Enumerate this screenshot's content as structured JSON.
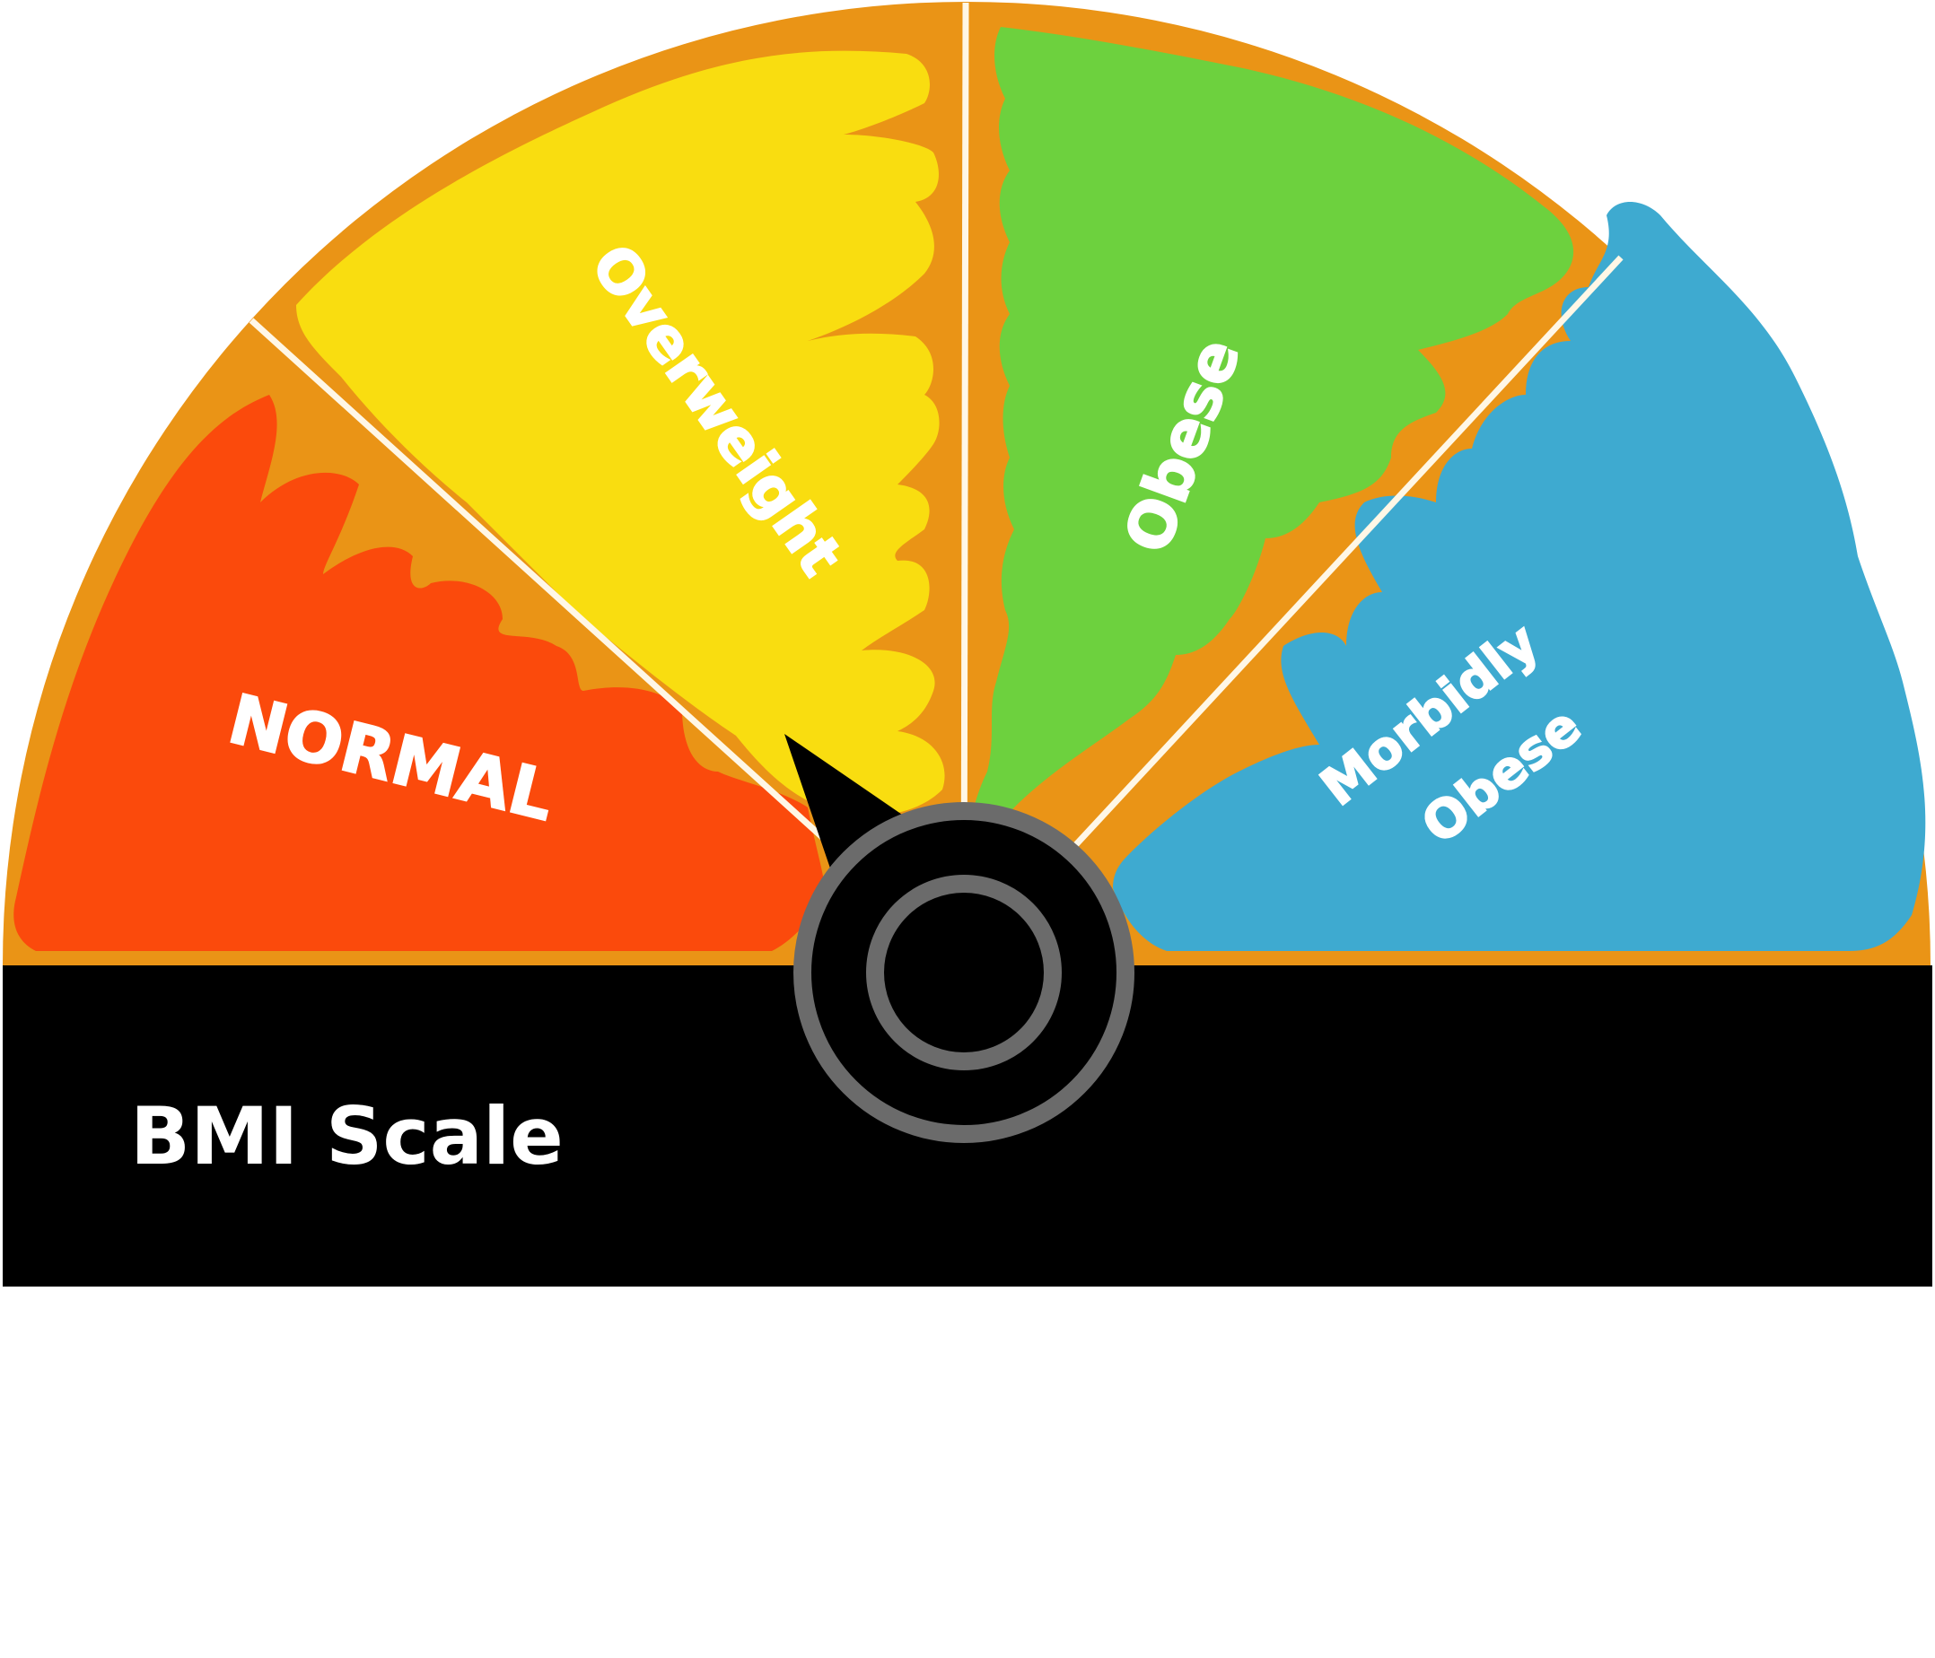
{
  "title": "BMI Scale",
  "colors": {
    "frame": "#ea9416",
    "divider": "#fff7e6",
    "band": "#000000",
    "hub_ring": "#6b6b6b",
    "needle": "#000000"
  },
  "segments": [
    {
      "id": "normal",
      "label_lines": [
        "NORMAL"
      ],
      "color": "#fb4a0c"
    },
    {
      "id": "overweight",
      "label_lines": [
        "Overweight"
      ],
      "color": "#f9dd10"
    },
    {
      "id": "obese",
      "label_lines": [
        "Obese"
      ],
      "color": "#6dd13e"
    },
    {
      "id": "morbidly-obese",
      "label_lines": [
        "Morbidly",
        "Obese"
      ],
      "color": "#3eaad0"
    }
  ],
  "needle": {
    "pointing_to": "overweight"
  }
}
